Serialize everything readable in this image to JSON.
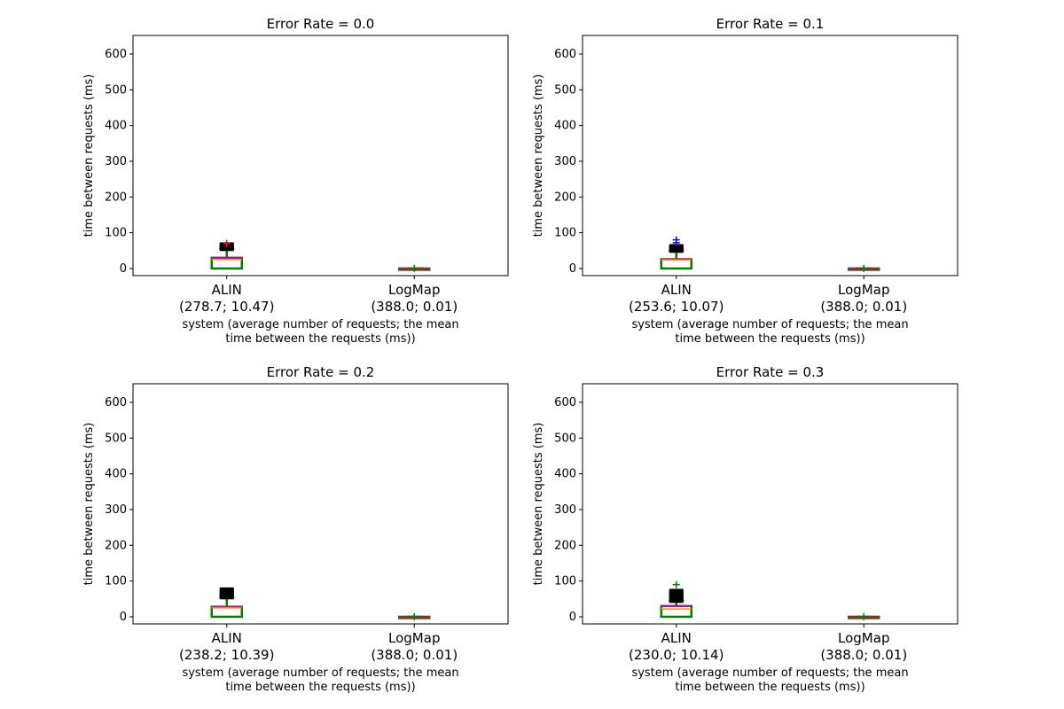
{
  "chart_data": [
    {
      "type": "box",
      "title": "Error Rate = 0.0",
      "ylabel": "time between requests (ms)",
      "xlabel": "system (average number of requests; the mean\ntime between the requests (ms))",
      "ylim": [
        -20,
        652
      ],
      "yticks": [
        0,
        100,
        200,
        300,
        400,
        500,
        600
      ],
      "categories": [
        "ALIN",
        "LogMap"
      ],
      "category_sublabels": [
        "(278.7; 10.47)",
        "(388.0; 0.01)"
      ],
      "boxes": [
        {
          "q1": 0,
          "median": 25,
          "q3": 30,
          "whisker_low": 0,
          "whisker_high": 55,
          "fliers": [
            55,
            58,
            61,
            64,
            67
          ],
          "outlier_color": "#ff0000",
          "extreme": [
            70
          ]
        },
        {
          "q1": 0,
          "median": 0,
          "q3": 0,
          "whisker_low": 0,
          "whisker_high": 1,
          "fliers": []
        }
      ]
    },
    {
      "type": "box",
      "title": "Error Rate = 0.1",
      "ylabel": "time between requests (ms)",
      "xlabel": "system (average number of requests; the mean\ntime between the requests (ms))",
      "ylim": [
        -20,
        652
      ],
      "yticks": [
        0,
        100,
        200,
        300,
        400,
        500,
        600
      ],
      "categories": [
        "ALIN",
        "LogMap"
      ],
      "category_sublabels": [
        "(253.6; 10.07)",
        "(388.0; 0.01)"
      ],
      "boxes": [
        {
          "q1": 0,
          "median": 24,
          "q3": 26,
          "whisker_low": 0,
          "whisker_high": 50,
          "fliers": [
            50,
            53,
            56,
            59,
            62
          ],
          "outlier_color": "#0000ff",
          "extreme": [
            80,
            72
          ]
        },
        {
          "q1": 0,
          "median": 0,
          "q3": 0,
          "whisker_low": 0,
          "whisker_high": 1,
          "fliers": []
        }
      ]
    },
    {
      "type": "box",
      "title": "Error Rate = 0.2",
      "ylabel": "time between requests (ms)",
      "xlabel": "system (average number of requests; the mean\ntime between the requests (ms))",
      "ylim": [
        -20,
        652
      ],
      "yticks": [
        0,
        100,
        200,
        300,
        400,
        500,
        600
      ],
      "categories": [
        "ALIN",
        "LogMap"
      ],
      "category_sublabels": [
        "(238.2; 10.39)",
        "(388.0; 0.01)"
      ],
      "boxes": [
        {
          "q1": 0,
          "median": 25,
          "q3": 28,
          "whisker_low": 0,
          "whisker_high": 55,
          "fliers": [
            55,
            60,
            63,
            66,
            72,
            76
          ],
          "outlier_color": "#bfbf00",
          "extreme": []
        },
        {
          "q1": 0,
          "median": 0,
          "q3": 0,
          "whisker_low": 0,
          "whisker_high": 1,
          "fliers": []
        }
      ]
    },
    {
      "type": "box",
      "title": "Error Rate = 0.3",
      "ylabel": "time between requests (ms)",
      "xlabel": "system (average number of requests; the mean\ntime between the requests (ms))",
      "ylim": [
        -20,
        652
      ],
      "yticks": [
        0,
        100,
        200,
        300,
        400,
        500,
        600
      ],
      "categories": [
        "ALIN",
        "LogMap"
      ],
      "category_sublabels": [
        "(230.0; 10.14)",
        "(388.0; 0.01)"
      ],
      "boxes": [
        {
          "q1": 0,
          "median": 22,
          "q3": 30,
          "whisker_low": 0,
          "whisker_high": 45,
          "fliers": [
            45,
            50,
            55,
            60,
            65,
            72
          ],
          "outlier_color": "#008000",
          "extreme": [
            90
          ]
        },
        {
          "q1": 0,
          "median": 0,
          "q3": 0,
          "whisker_low": 0,
          "whisker_high": 1,
          "fliers": []
        }
      ]
    }
  ]
}
